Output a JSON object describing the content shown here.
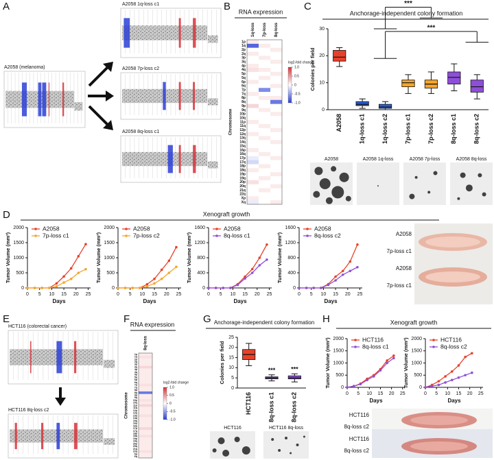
{
  "figure": {
    "panels": [
      "A",
      "B",
      "C",
      "D",
      "E",
      "F",
      "G",
      "H"
    ],
    "cnv_captions": [
      "A2058 (melanoma)",
      "A2058 1q-loss c1",
      "A2058 7p-loss c2",
      "A2058 8q-loss c1",
      "HCT116 (colorectal cancer)",
      "HCT116 8q-loss c2"
    ],
    "colony_photo_labels_c": [
      "A2058",
      "A2058 1q-loss",
      "A2058 7p-loss",
      "A2058 8q-loss"
    ],
    "xenograft_title_d": "Xenograft growth",
    "mouse_labels_d": [
      "A2058",
      "7p-loss c1",
      "A2058",
      "7p-loss c1"
    ],
    "colony_photo_labels_g": [
      "HCT116",
      "HCT116 8q-loss"
    ],
    "xenograft_title_h": "Xenograft growth",
    "mouse_labels_h": [
      "HCT116",
      "8q-loss c2",
      "HCT116",
      "8q-loss c2"
    ]
  },
  "chart_data": [
    {
      "type": "box",
      "title": "Anchorage-independent colony formation",
      "ylabel": "Colonies per field",
      "categories": [
        "A2058",
        "1q-loss c1",
        "1q-loss c2",
        "7p-loss c1",
        "7p-loss c2",
        "8q-loss c1",
        "8q-loss c2"
      ],
      "colors": [
        "#e8412a",
        "#2b5fd9",
        "#2b5fd9",
        "#f4a62a",
        "#f4a62a",
        "#8e4fd8",
        "#8e4fd8"
      ],
      "boxes": [
        {
          "min": 16,
          "q1": 18,
          "median": 19.5,
          "q3": 22,
          "max": 23
        },
        {
          "min": 0.5,
          "q1": 1.5,
          "median": 2,
          "q3": 3,
          "max": 4
        },
        {
          "min": 0,
          "q1": 0.5,
          "median": 1,
          "q3": 2,
          "max": 3
        },
        {
          "min": 6,
          "q1": 8.5,
          "median": 10,
          "q3": 11,
          "max": 13
        },
        {
          "min": 6,
          "q1": 8,
          "median": 9.5,
          "q3": 11,
          "max": 14
        },
        {
          "min": 7,
          "q1": 9.5,
          "median": 12,
          "q3": 14,
          "max": 17
        },
        {
          "min": 4,
          "q1": 6.5,
          "median": 8.5,
          "q3": 11,
          "max": 13
        }
      ],
      "ylim": [
        0,
        30
      ],
      "yticks": [
        0,
        10,
        20,
        30
      ],
      "annotations": [
        "***",
        "***"
      ]
    },
    {
      "type": "line",
      "xlabel": "Days",
      "ylabel": "Tumor Volume (mm³)",
      "x": [
        0,
        3,
        6,
        9,
        12,
        15,
        18,
        21,
        24
      ],
      "series": [
        {
          "name": "A2058",
          "color": "#e8412a",
          "values": [
            0,
            0,
            0,
            0,
            150,
            380,
            650,
            1050,
            1450
          ]
        },
        {
          "name": "7p-loss c1",
          "color": "#f4a62a",
          "values": [
            0,
            0,
            0,
            0,
            50,
            180,
            300,
            500,
            620
          ]
        }
      ],
      "xlim": [
        0,
        26
      ],
      "xticks": [
        0,
        5,
        10,
        15,
        20,
        25
      ],
      "ylim": [
        0,
        2000
      ],
      "yticks": [
        0,
        500,
        1000,
        1500,
        2000
      ]
    },
    {
      "type": "line",
      "xlabel": "Days",
      "ylabel": "Tumor Volume (mm³)",
      "x": [
        0,
        3,
        6,
        9,
        12,
        15,
        18,
        21,
        24
      ],
      "series": [
        {
          "name": "A2058",
          "color": "#e8412a",
          "values": [
            0,
            0,
            0,
            0,
            120,
            300,
            600,
            900,
            1350
          ]
        },
        {
          "name": "7p-loss c2",
          "color": "#f4a62a",
          "values": [
            0,
            0,
            0,
            0,
            50,
            150,
            300,
            500,
            700
          ]
        }
      ],
      "xlim": [
        0,
        26
      ],
      "xticks": [
        0,
        5,
        10,
        15,
        20,
        25
      ],
      "ylim": [
        0,
        2000
      ],
      "yticks": [
        0,
        500,
        1000,
        1500,
        2000
      ]
    },
    {
      "type": "line",
      "xlabel": "Days",
      "ylabel": "Tumor Volume (mm³)",
      "x": [
        0,
        3,
        6,
        9,
        12,
        15,
        18,
        21,
        24
      ],
      "series": [
        {
          "name": "A2058",
          "color": "#e8412a",
          "values": [
            0,
            0,
            0,
            0,
            100,
            300,
            500,
            800,
            1150
          ]
        },
        {
          "name": "8q-loss c1",
          "color": "#8e4fd8",
          "values": [
            0,
            0,
            0,
            0,
            80,
            250,
            400,
            600,
            750
          ]
        }
      ],
      "xlim": [
        0,
        26
      ],
      "xticks": [
        0,
        5,
        10,
        15,
        20,
        25
      ],
      "ylim": [
        0,
        1600
      ],
      "yticks": [
        0,
        400,
        800,
        1200,
        1600
      ]
    },
    {
      "type": "line",
      "xlabel": "Days",
      "ylabel": "Tumor Volume (mm³)",
      "x": [
        0,
        3,
        6,
        9,
        12,
        15,
        18,
        21,
        24
      ],
      "series": [
        {
          "name": "A2058",
          "color": "#e8412a",
          "values": [
            0,
            0,
            0,
            0,
            100,
            300,
            450,
            700,
            1150
          ]
        },
        {
          "name": "8q-loss c2",
          "color": "#8e4fd8",
          "values": [
            0,
            0,
            0,
            0,
            80,
            200,
            350,
            450,
            550
          ]
        }
      ],
      "xlim": [
        0,
        26
      ],
      "xticks": [
        0,
        5,
        10,
        15,
        20,
        25
      ],
      "ylim": [
        0,
        1600
      ],
      "yticks": [
        0,
        400,
        800,
        1200,
        1600
      ]
    },
    {
      "type": "box",
      "title": "Anchorage-independent colony formation",
      "ylabel": "Colonies per field",
      "categories": [
        "HCT116",
        "8q-loss c1",
        "8q-loss c2"
      ],
      "colors": [
        "#e8412a",
        "#8e4fd8",
        "#8e4fd8"
      ],
      "boxes": [
        {
          "min": 11,
          "q1": 14,
          "median": 16.5,
          "q3": 19,
          "max": 22
        },
        {
          "min": 3.5,
          "q1": 4.5,
          "median": 5,
          "q3": 5.5,
          "max": 6.5
        },
        {
          "min": 3,
          "q1": 4.5,
          "median": 5,
          "q3": 6,
          "max": 7
        }
      ],
      "ylim": [
        0,
        25
      ],
      "yticks": [
        0,
        5,
        10,
        15,
        20,
        25
      ],
      "annotations": [
        "***",
        "***"
      ]
    },
    {
      "type": "line",
      "xlabel": "Days",
      "ylabel": "Tumor Volume (mm³)",
      "x": [
        0,
        3,
        6,
        9,
        12,
        15,
        18,
        21
      ],
      "series": [
        {
          "name": "HCT116",
          "color": "#e8412a",
          "values": [
            0,
            50,
            150,
            350,
            500,
            750,
            1100,
            1300
          ]
        },
        {
          "name": "8q-loss c1",
          "color": "#8e4fd8",
          "values": [
            0,
            50,
            130,
            300,
            450,
            700,
            1000,
            1200
          ]
        }
      ],
      "xlim": [
        0,
        26
      ],
      "xticks": [
        0,
        5,
        10,
        15,
        20,
        25
      ],
      "ylim": [
        0,
        2000
      ],
      "yticks": [
        0,
        500,
        1000,
        1500,
        2000
      ]
    },
    {
      "type": "line",
      "xlabel": "Days",
      "ylabel": "Tumor Volume (mm³)",
      "x": [
        0,
        3,
        6,
        9,
        12,
        15,
        18,
        21
      ],
      "series": [
        {
          "name": "HCT116",
          "color": "#e8412a",
          "values": [
            0,
            100,
            250,
            450,
            650,
            900,
            1250,
            1400
          ]
        },
        {
          "name": "8q-loss c2",
          "color": "#8e4fd8",
          "values": [
            0,
            50,
            100,
            200,
            300,
            400,
            500,
            600
          ]
        }
      ],
      "xlim": [
        0,
        26
      ],
      "xticks": [
        0,
        5,
        10,
        15,
        20,
        25
      ],
      "ylim": [
        0,
        2000
      ],
      "yticks": [
        0,
        500,
        1000,
        1500,
        2000
      ]
    },
    {
      "type": "heatmap",
      "title": "RNA expression",
      "ylabel": "Chromosome",
      "columns": [
        "1q-loss",
        "7p-loss",
        "8q-loss"
      ],
      "rows": [
        "1p",
        "1q",
        "2p",
        "2q",
        "3p",
        "3q",
        "4p",
        "4q",
        "5p",
        "5q",
        "6p",
        "6q",
        "7p",
        "7q",
        "8p",
        "8q",
        "9p",
        "9q",
        "10p",
        "10q",
        "11p",
        "11q",
        "12p",
        "12q",
        "13q",
        "14q",
        "15q",
        "16p",
        "16q",
        "17p",
        "17q",
        "18p",
        "18q",
        "19p",
        "19q",
        "20p",
        "20q",
        "21q",
        "22q",
        "Xp",
        "Xq"
      ],
      "values": [
        [
          0.1,
          -0.8,
          0,
          0.1,
          0,
          0,
          0.1,
          0.15,
          0,
          0,
          0.1,
          0,
          0,
          0.1,
          0,
          0,
          0.2,
          0,
          0,
          0,
          0.1,
          0,
          0,
          0.1,
          0,
          0,
          0,
          0.1,
          0,
          -0.1,
          -0.2,
          0,
          0.1,
          0,
          0,
          0.15,
          0,
          0,
          0,
          0.1,
          -0.1
        ],
        [
          0,
          0.1,
          0,
          0,
          0.1,
          0,
          0,
          0.1,
          0,
          0.1,
          0,
          0,
          -0.6,
          0,
          0.1,
          0,
          0,
          0.1,
          0,
          0,
          0,
          0.1,
          0,
          0,
          0.1,
          0,
          0,
          0,
          0.1,
          0,
          0,
          0.1,
          0,
          0,
          0.1,
          0,
          0,
          0.1,
          0,
          0,
          0
        ],
        [
          0,
          0,
          0.1,
          0,
          0,
          0.1,
          0,
          0,
          0.1,
          0,
          0,
          0.1,
          0,
          0,
          0.1,
          -0.7,
          0,
          0,
          0.1,
          0,
          0,
          0,
          0.1,
          0,
          0,
          0.1,
          0,
          0,
          0,
          0.1,
          0,
          0,
          0,
          0.1,
          0,
          0,
          0.1,
          0,
          0,
          0,
          0.1
        ]
      ],
      "zlim": [
        -1,
        1
      ],
      "colorbar": {
        "title": "log2-fold change",
        "ticks": [
          {
            "value": 1,
            "label": "1.0"
          },
          0.5,
          0,
          -0.5,
          {
            "value": -1,
            "label": "-1.0"
          }
        ]
      }
    },
    {
      "type": "heatmap",
      "title": "RNA expression",
      "ylabel": "Chromosome",
      "columns": [
        "8q-loss"
      ],
      "rows": [
        "1p",
        "1q",
        "2p",
        "2q",
        "3p",
        "3q",
        "4p",
        "4q",
        "5p",
        "5q",
        "6p",
        "6q",
        "7p",
        "7q",
        "8p",
        "8q",
        "9p",
        "9q",
        "10p",
        "10q",
        "11p",
        "11q",
        "12p",
        "12q",
        "13q",
        "14q",
        "15q",
        "16p",
        "16q",
        "17p",
        "17q",
        "18p",
        "18q",
        "19p",
        "19q",
        "20p",
        "20q",
        "21q",
        "22q",
        "Xp",
        "Xq"
      ],
      "values": [
        [
          0.1,
          0.15,
          0.1,
          0.1,
          0.1,
          0.2,
          0.1,
          0.1,
          0.1,
          0.1,
          0.1,
          0.1,
          0.15,
          0.1,
          0.1,
          -0.7,
          0.1,
          0.1,
          0.15,
          0.1,
          0.2,
          0.1,
          0.1,
          0.1,
          0.15,
          0.1,
          0.1,
          0.1,
          0.1,
          0.2,
          0.1,
          0.1,
          0.15,
          0.1,
          0.1,
          0.1,
          0.1,
          0.1,
          0.15,
          0.1,
          0.1
        ]
      ],
      "zlim": [
        -1,
        1
      ],
      "colorbar": {
        "title": "log2-fold change",
        "ticks": [
          {
            "value": 1,
            "label": "1.0"
          },
          0.5,
          0,
          -0.5,
          {
            "value": -1,
            "label": "-1.0"
          }
        ]
      }
    }
  ]
}
